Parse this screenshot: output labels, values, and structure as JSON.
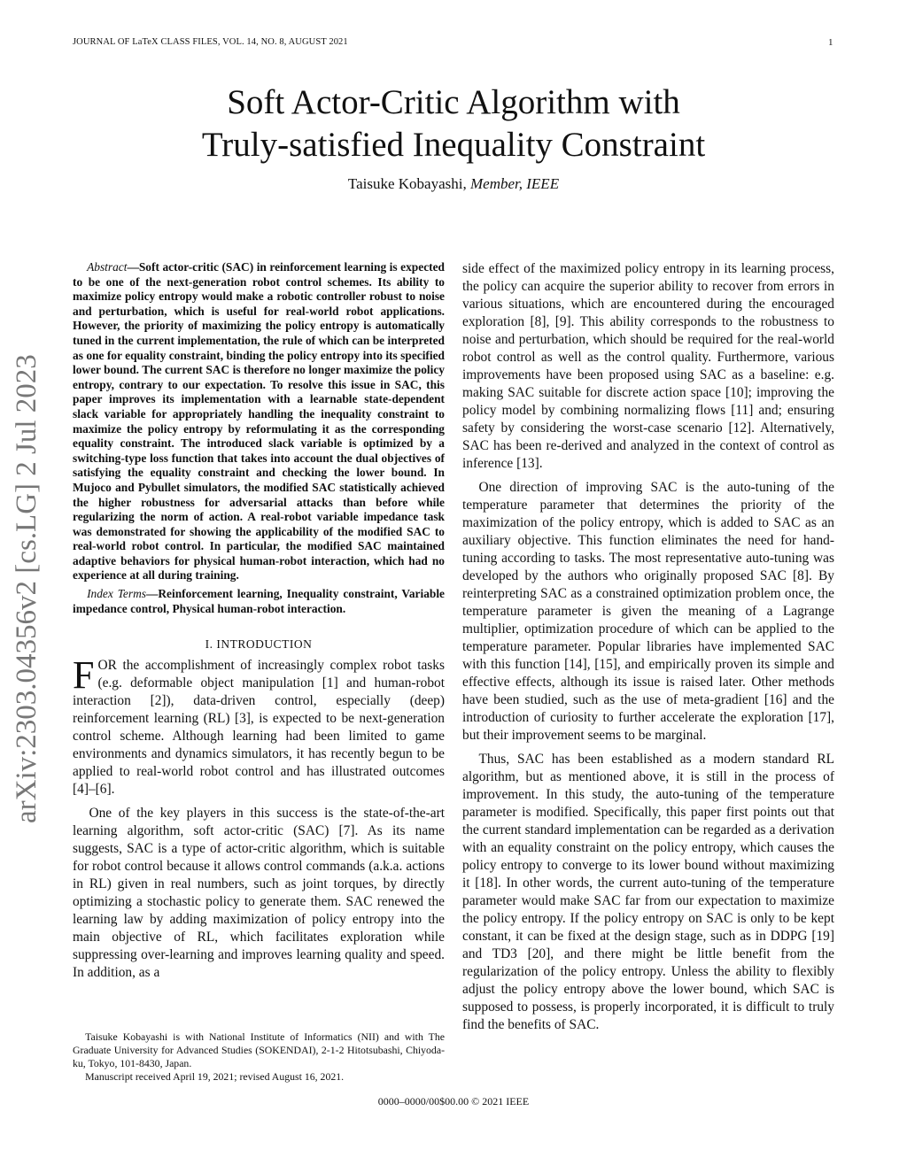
{
  "header": {
    "journal": "JOURNAL OF LaTeX CLASS FILES, VOL. 14, NO. 8, AUGUST 2021",
    "page_number": "1"
  },
  "title_line1": "Soft Actor-Critic Algorithm with",
  "title_line2": "Truly-satisfied Inequality Constraint",
  "author": {
    "name": "Taisuke Kobayashi,",
    "affiliation": "Member, IEEE"
  },
  "arxiv_stamp": "arXiv:2303.04356v2  [cs.LG]  2 Jul 2023",
  "abstract": {
    "label": "Abstract",
    "text": "—Soft actor-critic (SAC) in reinforcement learning is expected to be one of the next-generation robot control schemes. Its ability to maximize policy entropy would make a robotic controller robust to noise and perturbation, which is useful for real-world robot applications. However, the priority of maximizing the policy entropy is automatically tuned in the current implementation, the rule of which can be interpreted as one for equality constraint, binding the policy entropy into its specified lower bound. The current SAC is therefore no longer maximize the policy entropy, contrary to our expectation. To resolve this issue in SAC, this paper improves its implementation with a learnable state-dependent slack variable for appropriately handling the inequality constraint to maximize the policy entropy by reformulating it as the corresponding equality constraint. The introduced slack variable is optimized by a switching-type loss function that takes into account the dual objectives of satisfying the equality constraint and checking the lower bound. In Mujoco and Pybullet simulators, the modified SAC statistically achieved the higher robustness for adversarial attacks than before while regularizing the norm of action. A real-robot variable impedance task was demonstrated for showing the applicability of the modified SAC to real-world robot control. In particular, the modified SAC maintained adaptive behaviors for physical human-robot interaction, which had no experience at all during training."
  },
  "index_terms": {
    "label": "Index Terms",
    "text": "—Reinforcement learning, Inequality constraint, Variable impedance control, Physical human-robot interaction."
  },
  "section": "I. INTRODUCTION",
  "intro": {
    "drop_cap": "F",
    "p1": "OR the accomplishment of increasingly complex robot tasks (e.g. deformable object manipulation [1] and human-robot interaction [2]), data-driven control, especially (deep) reinforcement learning (RL) [3], is expected to be next-generation control scheme. Although learning had been limited to game environments and dynamics simulators, it has recently begun to be applied to real-world robot control and has illustrated outcomes [4]–[6].",
    "p2": "One of the key players in this success is the state-of-the-art learning algorithm, soft actor-critic (SAC) [7]. As its name suggests, SAC is a type of actor-critic algorithm, which is suitable for robot control because it allows control commands (a.k.a. actions in RL) given in real numbers, such as joint torques, by directly optimizing a stochastic policy to generate them. SAC renewed the learning law by adding maximization of policy entropy into the main objective of RL, which facilitates exploration while suppressing over-learning and improves learning quality and speed. In addition, as a",
    "p2_cont": "side effect of the maximized policy entropy in its learning process, the policy can acquire the superior ability to recover from errors in various situations, which are encountered during the encouraged exploration [8], [9]. This ability corresponds to the robustness to noise and perturbation, which should be required for the real-world robot control as well as the control quality. Furthermore, various improvements have been proposed using SAC as a baseline: e.g. making SAC suitable for discrete action space [10]; improving the policy model by combining normalizing flows [11] and; ensuring safety by considering the worst-case scenario [12]. Alternatively, SAC has been re-derived and analyzed in the context of control as inference [13].",
    "p3": "One direction of improving SAC is the auto-tuning of the temperature parameter that determines the priority of the maximization of the policy entropy, which is added to SAC as an auxiliary objective. This function eliminates the need for hand-tuning according to tasks. The most representative auto-tuning was developed by the authors who originally proposed SAC [8]. By reinterpreting SAC as a constrained optimization problem once, the temperature parameter is given the meaning of a Lagrange multiplier, optimization procedure of which can be applied to the temperature parameter. Popular libraries have implemented SAC with this function [14], [15], and empirically proven its simple and effective effects, although its issue is raised later. Other methods have been studied, such as the use of meta-gradient [16] and the introduction of curiosity to further accelerate the exploration [17], but their improvement seems to be marginal.",
    "p4": "Thus, SAC has been established as a modern standard RL algorithm, but as mentioned above, it is still in the process of improvement. In this study, the auto-tuning of the temperature parameter is modified. Specifically, this paper first points out that the current standard implementation can be regarded as a derivation with an equality constraint on the policy entropy, which causes the policy entropy to converge to its lower bound without maximizing it [18]. In other words, the current auto-tuning of the temperature parameter would make SAC far from our expectation to maximize the policy entropy. If the policy entropy on SAC is only to be kept constant, it can be fixed at the design stage, such as in DDPG [19] and TD3 [20], and there might be little benefit from the regularization of the policy entropy. Unless the ability to flexibly adjust the policy entropy above the lower bound, which SAC is supposed to possess, is properly incorporated, it is difficult to truly find the benefits of SAC."
  },
  "footnote": {
    "affil": "Taisuke Kobayashi is with National Institute of Informatics (NII) and with The Graduate University for Advanced Studies (SOKENDAI), 2-1-2 Hitotsubashi, Chiyoda-ku, Tokyo, 101-8430, Japan.",
    "manuscript": "Manuscript received April 19, 2021; revised August 16, 2021."
  },
  "copyright": "0000–0000/00$00.00 © 2021 IEEE"
}
